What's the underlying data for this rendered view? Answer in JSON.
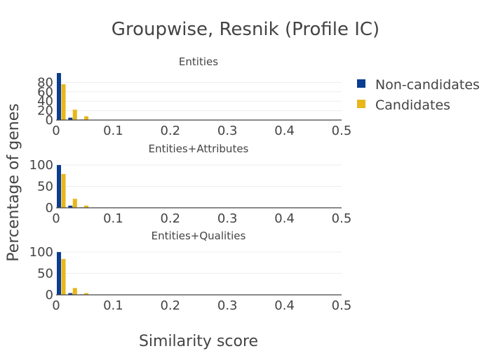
{
  "chart_data": {
    "type": "bar",
    "title": "Groupwise, Resnik (Profile IC)",
    "xlabel": "Similarity score",
    "ylabel": "Percentage of genes",
    "xlim": [
      0,
      0.5
    ],
    "x_ticks": [
      "0",
      "0.1",
      "0.2",
      "0.3",
      "0.4",
      "0.5"
    ],
    "bin_centers": [
      0.01,
      0.03,
      0.05
    ],
    "legend": {
      "placement": "right",
      "entries": [
        {
          "name": "Non-candidates",
          "color": "#0b3d91"
        },
        {
          "name": "Candidates",
          "color": "#e8b71a"
        }
      ]
    },
    "panels": [
      {
        "title": "Entities",
        "ylim": [
          0,
          100
        ],
        "y_ticks": [
          "0",
          "20",
          "40",
          "60",
          "80"
        ],
        "y_tick_values": [
          0,
          20,
          40,
          60,
          80
        ],
        "series": [
          {
            "name": "Non-candidates",
            "values": [
              100,
              5,
              1
            ]
          },
          {
            "name": "Candidates",
            "values": [
              76,
              22,
              8
            ]
          }
        ]
      },
      {
        "title": "Entities+Attributes",
        "ylim": [
          0,
          110
        ],
        "y_ticks": [
          "0",
          "50",
          "100"
        ],
        "y_tick_values": [
          0,
          50,
          100
        ],
        "series": [
          {
            "name": "Non-candidates",
            "values": [
              100,
              5,
              1
            ]
          },
          {
            "name": "Candidates",
            "values": [
              79,
              21,
              5
            ]
          }
        ]
      },
      {
        "title": "Entities+Qualities",
        "ylim": [
          0,
          110
        ],
        "y_ticks": [
          "0",
          "50",
          "100"
        ],
        "y_tick_values": [
          0,
          50,
          100
        ],
        "series": [
          {
            "name": "Non-candidates",
            "values": [
              100,
              4,
              1
            ]
          },
          {
            "name": "Candidates",
            "values": [
              84,
              16,
              4
            ]
          }
        ]
      }
    ]
  }
}
